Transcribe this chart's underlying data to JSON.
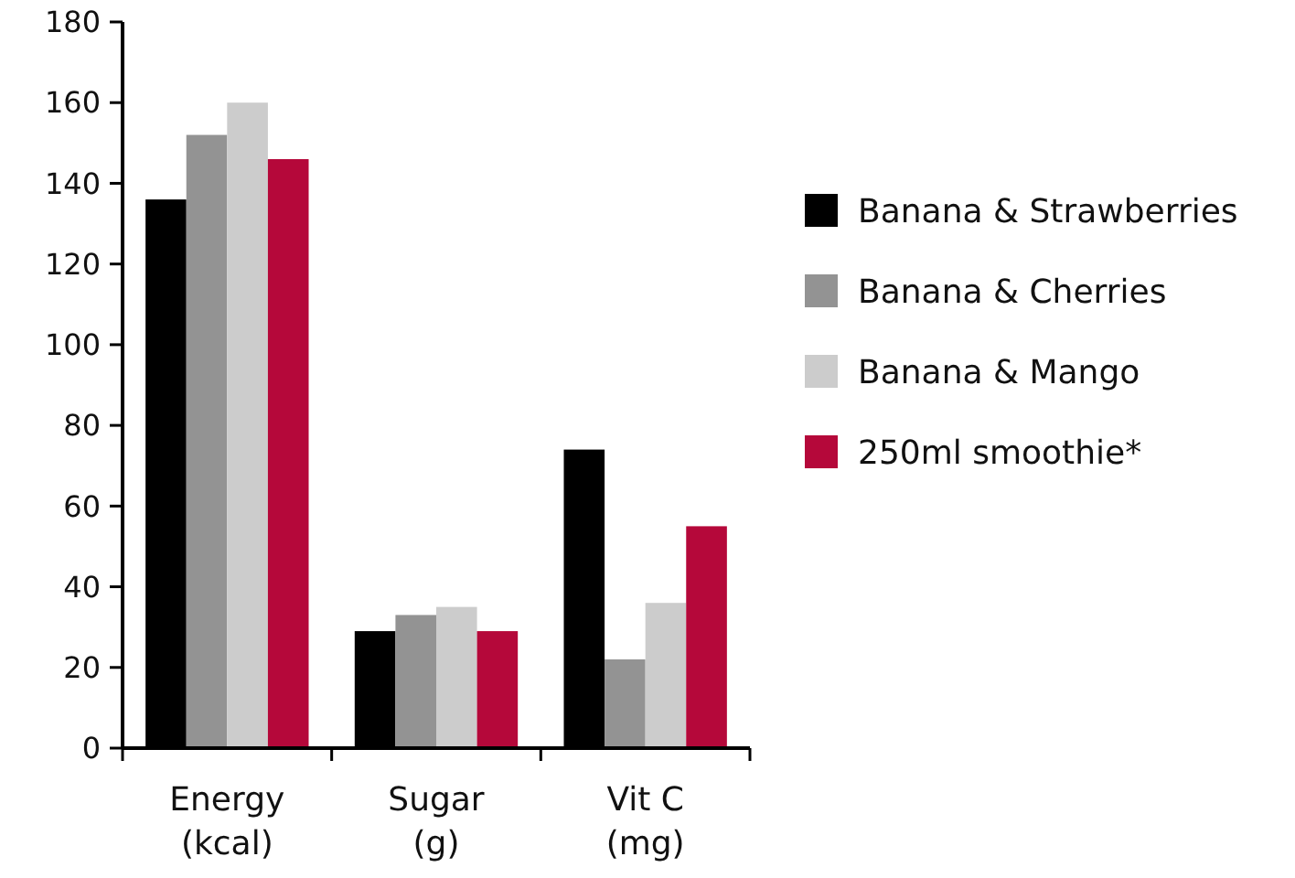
{
  "chart_data": {
    "type": "bar",
    "categories": [
      "Energy\n(kcal)",
      "Sugar\n(g)",
      "Vit C\n(mg)"
    ],
    "series": [
      {
        "name": "Banana & Strawberries",
        "color": "#000000",
        "values": [
          136,
          29,
          74
        ]
      },
      {
        "name": "Banana & Cherries",
        "color": "#939393",
        "values": [
          152,
          33,
          22
        ]
      },
      {
        "name": "Banana & Mango",
        "color": "#cccccc",
        "values": [
          160,
          35,
          36
        ]
      },
      {
        "name": "250ml smoothie*",
        "color": "#b5083a",
        "values": [
          146,
          29,
          55
        ]
      }
    ],
    "ylim": [
      0,
      180
    ],
    "yticks": [
      0,
      20,
      40,
      60,
      80,
      100,
      120,
      140,
      160,
      180
    ],
    "grid": false,
    "legend": "right"
  }
}
